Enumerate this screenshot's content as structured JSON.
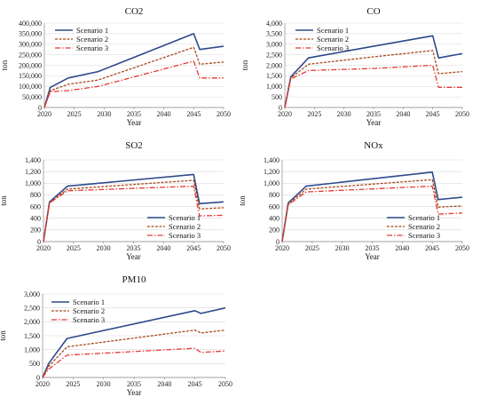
{
  "chart_data": [
    {
      "type": "line",
      "title": "CO2",
      "xlabel": "Year",
      "ylabel": "ton",
      "xlim": [
        2020,
        2050
      ],
      "ylim": [
        0,
        400000
      ],
      "xticks": [
        "2020",
        "2025",
        "2030",
        "2035",
        "2040",
        "2045",
        "2050"
      ],
      "yticks": [
        "0",
        "50,000",
        "100,000",
        "150,000",
        "200,000",
        "250,000",
        "300,000",
        "350,000",
        "400,000"
      ],
      "grid": true,
      "legend": "top-left",
      "series": [
        {
          "name": "Scenario 1",
          "color": "#2e4a8a",
          "x": [
            2020,
            2021,
            2024,
            2029,
            2045,
            2046,
            2050
          ],
          "y": [
            0,
            95000,
            140000,
            170000,
            350000,
            275000,
            290000
          ]
        },
        {
          "name": "Scenario 2",
          "color": "#a84a1c",
          "x": [
            2020,
            2021,
            2024,
            2029,
            2045,
            2046,
            2050
          ],
          "y": [
            0,
            80000,
            110000,
            130000,
            285000,
            205000,
            215000
          ]
        },
        {
          "name": "Scenario 3",
          "color": "#e53935",
          "x": [
            2020,
            2021,
            2024,
            2029,
            2045,
            2046,
            2050
          ],
          "y": [
            0,
            75000,
            80000,
            100000,
            220000,
            140000,
            140000
          ]
        }
      ]
    },
    {
      "type": "line",
      "title": "CO",
      "xlabel": "Year",
      "ylabel": "ton",
      "xlim": [
        2020,
        2050
      ],
      "ylim": [
        0,
        4000
      ],
      "xticks": [
        "2020",
        "2025",
        "2030",
        "2035",
        "2040",
        "2045",
        "2050"
      ],
      "yticks": [
        "0",
        "500",
        "1,000",
        "1,500",
        "2,000",
        "2,500",
        "3,000",
        "3,500",
        "4,000"
      ],
      "grid": true,
      "legend": "top-left",
      "series": [
        {
          "name": "Scenario 1",
          "color": "#2e4a8a",
          "x": [
            2020,
            2021,
            2024,
            2035,
            2045,
            2046,
            2050
          ],
          "y": [
            0,
            1450,
            2350,
            2900,
            3400,
            2350,
            2550
          ]
        },
        {
          "name": "Scenario 2",
          "color": "#a84a1c",
          "x": [
            2020,
            2021,
            2024,
            2035,
            2045,
            2046,
            2050
          ],
          "y": [
            0,
            1400,
            2050,
            2400,
            2700,
            1600,
            1700
          ]
        },
        {
          "name": "Scenario 3",
          "color": "#e53935",
          "x": [
            2020,
            2021,
            2024,
            2035,
            2045,
            2046,
            2050
          ],
          "y": [
            0,
            1350,
            1750,
            1850,
            2000,
            950,
            950
          ]
        }
      ]
    },
    {
      "type": "line",
      "title": "SO2",
      "xlabel": "Year",
      "ylabel": "ton",
      "xlim": [
        2020,
        2050
      ],
      "ylim": [
        0,
        1400
      ],
      "xticks": [
        "2020",
        "2025",
        "2030",
        "2035",
        "2040",
        "2045",
        "2050"
      ],
      "yticks": [
        "0",
        "200",
        "400",
        "600",
        "800",
        "1,000",
        "1,200",
        "1,400"
      ],
      "grid": true,
      "legend": "bottom-right",
      "series": [
        {
          "name": "Scenario 1",
          "color": "#2e4a8a",
          "x": [
            2020,
            2021,
            2024,
            2045,
            2046,
            2050
          ],
          "y": [
            0,
            680,
            950,
            1150,
            650,
            680
          ]
        },
        {
          "name": "Scenario 2",
          "color": "#a84a1c",
          "x": [
            2020,
            2021,
            2024,
            2045,
            2046,
            2050
          ],
          "y": [
            0,
            670,
            900,
            1050,
            560,
            580
          ]
        },
        {
          "name": "Scenario 3",
          "color": "#e53935",
          "x": [
            2020,
            2021,
            2024,
            2045,
            2046,
            2050
          ],
          "y": [
            0,
            660,
            870,
            950,
            440,
            450
          ]
        }
      ]
    },
    {
      "type": "line",
      "title": "NOx",
      "xlabel": "Year",
      "ylabel": "ton",
      "xlim": [
        2020,
        2050
      ],
      "ylim": [
        0,
        1400
      ],
      "xticks": [
        "2020",
        "2025",
        "2030",
        "2035",
        "2040",
        "2045",
        "2050"
      ],
      "yticks": [
        "0",
        "200",
        "400",
        "600",
        "800",
        "1,000",
        "1,200",
        "1,400"
      ],
      "grid": true,
      "legend": "bottom-right",
      "series": [
        {
          "name": "Scenario 1",
          "color": "#2e4a8a",
          "x": [
            2020,
            2021,
            2024,
            2045,
            2046,
            2050
          ],
          "y": [
            0,
            660,
            950,
            1190,
            720,
            760
          ]
        },
        {
          "name": "Scenario 2",
          "color": "#a84a1c",
          "x": [
            2020,
            2021,
            2024,
            2045,
            2046,
            2050
          ],
          "y": [
            0,
            640,
            900,
            1060,
            590,
            610
          ]
        },
        {
          "name": "Scenario 3",
          "color": "#e53935",
          "x": [
            2020,
            2021,
            2024,
            2045,
            2046,
            2050
          ],
          "y": [
            0,
            630,
            850,
            950,
            470,
            490
          ]
        }
      ]
    },
    {
      "type": "line",
      "title": "PM10",
      "xlabel": "Year",
      "ylabel": "ton",
      "xlim": [
        2020,
        2050
      ],
      "ylim": [
        0,
        3000
      ],
      "xticks": [
        "2020",
        "2025",
        "2030",
        "2035",
        "2040",
        "2045",
        "2050"
      ],
      "yticks": [
        "0",
        "500",
        "1,000",
        "1,500",
        "2,000",
        "2,500",
        "3,000"
      ],
      "grid": true,
      "legend": "top-left",
      "series": [
        {
          "name": "Scenario 1",
          "color": "#2e4a8a",
          "x": [
            2020,
            2021,
            2024,
            2045,
            2046,
            2050
          ],
          "y": [
            0,
            500,
            1400,
            2400,
            2300,
            2500
          ]
        },
        {
          "name": "Scenario 2",
          "color": "#a84a1c",
          "x": [
            2020,
            2021,
            2024,
            2045,
            2046,
            2050
          ],
          "y": [
            0,
            400,
            1100,
            1700,
            1600,
            1700
          ]
        },
        {
          "name": "Scenario 3",
          "color": "#e53935",
          "x": [
            2020,
            2021,
            2024,
            2045,
            2046,
            2050
          ],
          "y": [
            0,
            300,
            800,
            1050,
            900,
            950
          ]
        }
      ]
    }
  ]
}
